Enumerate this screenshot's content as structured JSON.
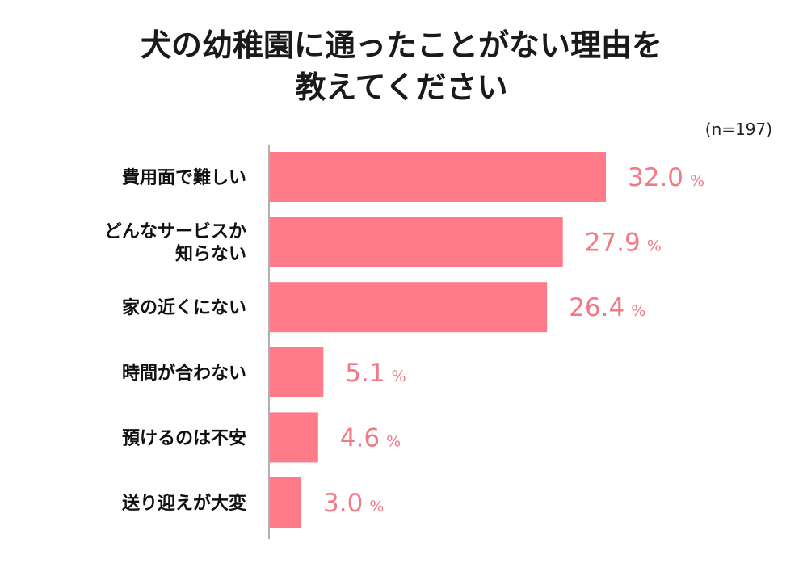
{
  "chart_data": {
    "type": "bar",
    "orientation": "horizontal",
    "title_lines": [
      "犬の幼稚園に通ったことがない理由を",
      "教えてください"
    ],
    "note": "(n=197)",
    "unit": "%",
    "categories": [
      [
        "費用面で難しい"
      ],
      [
        "どんなサービスか",
        "知らない"
      ],
      [
        "家の近くにない"
      ],
      [
        "時間が合わない"
      ],
      [
        "預けるのは不安"
      ],
      [
        "送り迎えが大変"
      ]
    ],
    "values": [
      32.0,
      27.9,
      26.4,
      5.1,
      4.6,
      3.0
    ],
    "value_labels": [
      "32.0",
      "27.9",
      "26.4",
      "5.1",
      "4.6",
      "3.0"
    ],
    "xlim": [
      0,
      32.0
    ],
    "bar_color": "#ff7b89",
    "label_color": "#f07a86",
    "axis_color": "#b0b0b0"
  }
}
